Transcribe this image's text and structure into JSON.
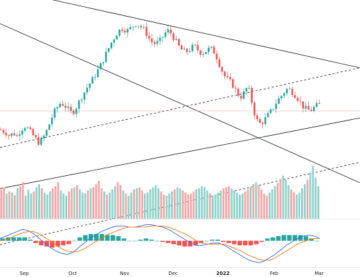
{
  "colors": {
    "up": "#26a69a",
    "down": "#ef5350",
    "upVol": "#8fd1c9",
    "downVol": "#f4a6a6",
    "macd": "#2962ff",
    "signal": "#ff6d00",
    "line": "#131722",
    "bg": "#ffffff"
  },
  "chart_data": [
    {
      "type": "candlestick",
      "title": "",
      "xlabel": "",
      "ylabel": "",
      "x_tick_labels": [
        {
          "text": "Sep",
          "bold": false
        },
        {
          "text": "Oct",
          "bold": false
        },
        {
          "text": "Nov",
          "bold": false
        },
        {
          "text": "Dec",
          "bold": false
        },
        {
          "text": "2022",
          "bold": true
        },
        {
          "text": "Feb",
          "bold": false
        },
        {
          "text": "Mar",
          "bold": false
        }
      ],
      "ylim": [
        80,
        450
      ],
      "close_path": [
        [
          0,
          230
        ],
        [
          4,
          228
        ],
        [
          8,
          226
        ],
        [
          12,
          220
        ],
        [
          16,
          222
        ],
        [
          20,
          224
        ],
        [
          24,
          218
        ],
        [
          28,
          226
        ],
        [
          32,
          232
        ],
        [
          36,
          236
        ],
        [
          40,
          232
        ],
        [
          44,
          226
        ],
        [
          48,
          220
        ],
        [
          52,
          214
        ],
        [
          56,
          208
        ],
        [
          60,
          212
        ],
        [
          64,
          220
        ],
        [
          68,
          230
        ],
        [
          72,
          242
        ],
        [
          76,
          254
        ],
        [
          80,
          264
        ],
        [
          84,
          270
        ],
        [
          88,
          276
        ],
        [
          92,
          272
        ],
        [
          96,
          268
        ],
        [
          100,
          262
        ],
        [
          104,
          258
        ],
        [
          108,
          264
        ],
        [
          112,
          272
        ],
        [
          116,
          282
        ],
        [
          120,
          290
        ],
        [
          124,
          298
        ],
        [
          128,
          306
        ],
        [
          132,
          312
        ],
        [
          136,
          320
        ],
        [
          140,
          328
        ],
        [
          144,
          336
        ],
        [
          148,
          346
        ],
        [
          152,
          356
        ],
        [
          156,
          366
        ],
        [
          160,
          376
        ],
        [
          164,
          384
        ],
        [
          168,
          392
        ],
        [
          172,
          398
        ],
        [
          176,
          402
        ],
        [
          180,
          400
        ],
        [
          184,
          398
        ],
        [
          188,
          402
        ],
        [
          192,
          406
        ],
        [
          196,
          410
        ],
        [
          200,
          408
        ],
        [
          204,
          404
        ],
        [
          208,
          400
        ],
        [
          212,
          392
        ],
        [
          216,
          384
        ],
        [
          220,
          378
        ],
        [
          224,
          376
        ],
        [
          228,
          378
        ],
        [
          232,
          382
        ],
        [
          236,
          390
        ],
        [
          240,
          396
        ],
        [
          244,
          398
        ],
        [
          248,
          392
        ],
        [
          252,
          384
        ],
        [
          256,
          376
        ],
        [
          260,
          368
        ],
        [
          264,
          364
        ],
        [
          268,
          362
        ],
        [
          272,
          364
        ],
        [
          276,
          368
        ],
        [
          280,
          372
        ],
        [
          284,
          368
        ],
        [
          288,
          362
        ],
        [
          292,
          360
        ],
        [
          296,
          362
        ],
        [
          300,
          366
        ],
        [
          304,
          368
        ],
        [
          308,
          364
        ],
        [
          312,
          356
        ],
        [
          316,
          344
        ],
        [
          320,
          332
        ],
        [
          324,
          322
        ],
        [
          328,
          316
        ],
        [
          332,
          312
        ],
        [
          336,
          306
        ],
        [
          340,
          298
        ],
        [
          344,
          290
        ],
        [
          348,
          286
        ],
        [
          352,
          292
        ],
        [
          356,
          300
        ],
        [
          360,
          296
        ],
        [
          364,
          276
        ],
        [
          368,
          256
        ],
        [
          372,
          244
        ],
        [
          376,
          240
        ],
        [
          380,
          244
        ],
        [
          384,
          250
        ],
        [
          388,
          256
        ],
        [
          392,
          262
        ],
        [
          396,
          270
        ],
        [
          400,
          278
        ],
        [
          404,
          284
        ],
        [
          408,
          290
        ],
        [
          412,
          296
        ],
        [
          416,
          300
        ],
        [
          420,
          296
        ],
        [
          424,
          292
        ],
        [
          428,
          286
        ],
        [
          432,
          280
        ],
        [
          436,
          272
        ],
        [
          440,
          266
        ],
        [
          444,
          264
        ],
        [
          448,
          262
        ],
        [
          452,
          266
        ],
        [
          456,
          270
        ],
        [
          460,
          272
        ]
      ],
      "trend_lines": [
        {
          "style": "solid",
          "x1": 0,
          "y1": 470,
          "x2": 520,
          "y2": 335
        },
        {
          "style": "solid",
          "x1": 0,
          "y1": 410,
          "x2": 520,
          "y2": 140
        },
        {
          "style": "solid",
          "x1": 0,
          "y1": 130,
          "x2": 520,
          "y2": 250
        },
        {
          "style": "dashed",
          "x1": 0,
          "y1": 200,
          "x2": 520,
          "y2": 335
        },
        {
          "style": "dashed",
          "x1": 0,
          "y1": 35,
          "x2": 520,
          "y2": 175
        }
      ],
      "reference_line": {
        "value": 262
      }
    },
    {
      "type": "bar",
      "title": "",
      "values": [
        55,
        60,
        48,
        52,
        50,
        45,
        58,
        62,
        70,
        44,
        55,
        48,
        52,
        60,
        66,
        58,
        50,
        46,
        52,
        58,
        62,
        70,
        54,
        48,
        44,
        52,
        58,
        60,
        64,
        56,
        50,
        48,
        54,
        58,
        60,
        66,
        72,
        58,
        52,
        46,
        50,
        56,
        62,
        70,
        64,
        54,
        48,
        44,
        50,
        56,
        58,
        60,
        54,
        48,
        50,
        56,
        60,
        64,
        58,
        52,
        46,
        44,
        48,
        52,
        56,
        60,
        58,
        54,
        50,
        46,
        48,
        52,
        56,
        58,
        62,
        60,
        54,
        48,
        44,
        46,
        50,
        54,
        58,
        60,
        62,
        58,
        54,
        50,
        46,
        48,
        52,
        56,
        60,
        66,
        70,
        64,
        56,
        48,
        44,
        50,
        56,
        62,
        68,
        76,
        82,
        74,
        64,
        56,
        50,
        46,
        50,
        58,
        66,
        74,
        88,
        100,
        78,
        62
      ],
      "ylim": [
        0,
        100
      ]
    },
    {
      "type": "line",
      "title": "",
      "series": [
        {
          "name": "",
          "values": [
            2,
            4,
            6,
            8,
            10,
            9,
            6,
            2,
            -2,
            -6,
            -9,
            -11,
            -12,
            -10,
            -6,
            -2,
            2,
            5,
            8,
            10,
            12,
            13,
            13,
            12,
            12,
            13,
            14,
            14,
            13,
            12,
            10,
            7,
            4,
            1,
            -2,
            -4,
            -4,
            -3,
            -2,
            -2,
            -4,
            -7,
            -10,
            -13,
            -16,
            -18,
            -19,
            -18,
            -15,
            -12,
            -8,
            -4,
            -1,
            2,
            4,
            5,
            4,
            2
          ]
        },
        {
          "name": "",
          "values": [
            0,
            1,
            3,
            5,
            7,
            8,
            8,
            6,
            3,
            0,
            -4,
            -7,
            -9,
            -10,
            -9,
            -7,
            -4,
            -1,
            2,
            5,
            7,
            9,
            11,
            12,
            12,
            12,
            12,
            13,
            13,
            13,
            12,
            10,
            8,
            6,
            3,
            0,
            -2,
            -3,
            -3,
            -3,
            -3,
            -5,
            -7,
            -9,
            -12,
            -14,
            -16,
            -17,
            -17,
            -15,
            -12,
            -9,
            -6,
            -3,
            -1,
            1,
            2,
            2
          ]
        }
      ],
      "bars": [
        2,
        3,
        3,
        3,
        3,
        1,
        -2,
        -4,
        -5,
        -6,
        -5,
        -4,
        -3,
        0,
        3,
        5,
        6,
        6,
        6,
        5,
        5,
        4,
        2,
        0,
        0,
        1,
        2,
        1,
        0,
        -1,
        -2,
        -3,
        -4,
        -5,
        -5,
        -4,
        -2,
        0,
        1,
        1,
        -1,
        -2,
        -3,
        -4,
        -4,
        -4,
        -3,
        -1,
        2,
        3,
        4,
        5,
        5,
        5,
        5,
        4,
        2,
        0
      ],
      "ylim": [
        -22,
        18
      ]
    }
  ]
}
